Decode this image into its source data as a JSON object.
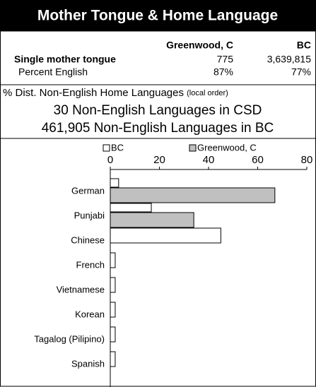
{
  "header": {
    "title": "Mother Tongue & Home Language"
  },
  "table": {
    "columns": [
      "Greenwood, C",
      "BC"
    ],
    "rows": [
      [
        "Single mother tongue",
        "775",
        "3,639,815"
      ],
      [
        "Percent English",
        "87%",
        "77%"
      ]
    ]
  },
  "info": {
    "heading": "% Dist. Non-English Home Languages",
    "note": "(local order)",
    "lines": [
      "30 Non-English Languages in CSD",
      "461,905 Non-English Languages in BC"
    ]
  },
  "chart_data": {
    "type": "hbar",
    "categories": [
      "German",
      "Punjabi",
      "Chinese",
      "French",
      "Vietnamese",
      "Korean",
      "Tagalog (Pilipino)",
      "Spanish"
    ],
    "series": [
      {
        "name": "BC",
        "color": "#ffffff",
        "values": [
          3.4,
          16.7,
          45,
          2,
          2,
          2,
          2,
          2
        ]
      },
      {
        "name": "Greenwood, C",
        "color": "#c0c0c0",
        "values": [
          67,
          34,
          0,
          0,
          0,
          0,
          0,
          0
        ]
      }
    ],
    "xlim": [
      0,
      80
    ],
    "xticks": [
      0,
      20,
      40,
      60,
      80
    ]
  }
}
